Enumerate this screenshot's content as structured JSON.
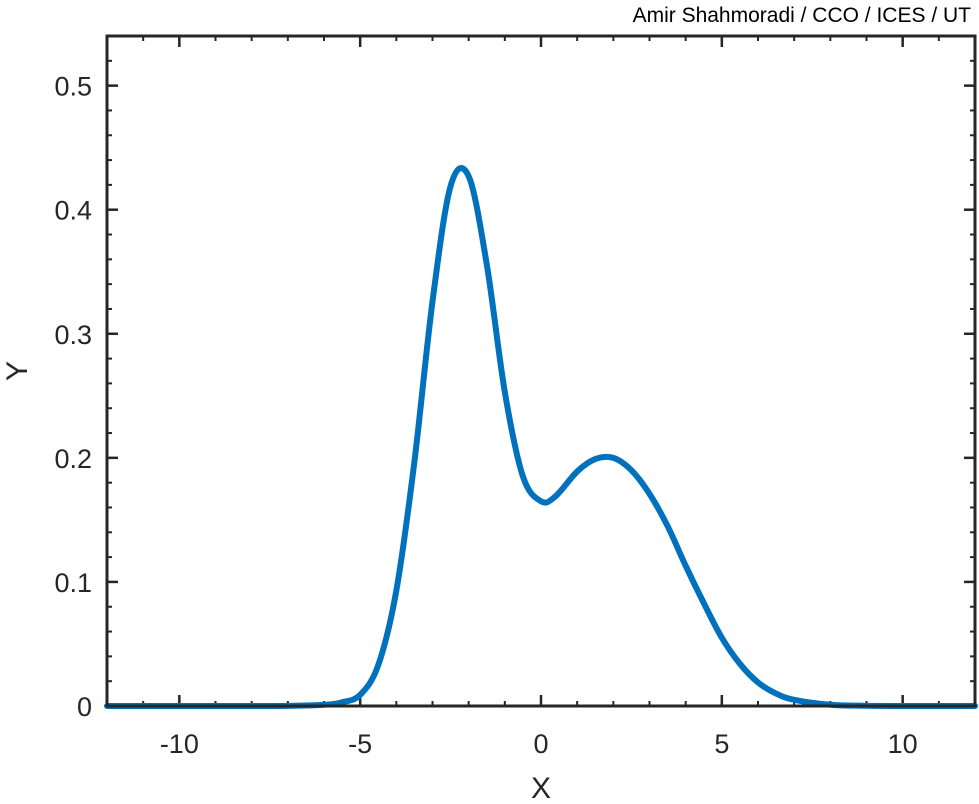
{
  "credit": "Amir Shahmoradi / CCO / ICES / UT",
  "chart_data": {
    "type": "line",
    "title": "",
    "xlabel": "X",
    "ylabel": "Y",
    "xlim": [
      -12,
      12
    ],
    "ylim": [
      0,
      0.54
    ],
    "xticks": [
      -10,
      -5,
      0,
      5,
      10
    ],
    "xtick_labels": [
      "-10",
      "-5",
      "0",
      "5",
      "10"
    ],
    "yticks": [
      0,
      0.1,
      0.2,
      0.3,
      0.4,
      0.5
    ],
    "ytick_labels": [
      "0",
      "0.1",
      "0.2",
      "0.3",
      "0.4",
      "0.5"
    ],
    "grid": false,
    "box": true,
    "minor_ticks": true,
    "line_color": "#0072BD",
    "series": [
      {
        "x": [
          -12,
          -10,
          -8,
          -7,
          -6,
          -5.5,
          -5,
          -4.5,
          -4,
          -3.5,
          -3,
          -2.5,
          -2,
          -1.5,
          -1,
          -0.5,
          0,
          0.4,
          1,
          1.5,
          2,
          2.5,
          3,
          3.5,
          4,
          4.5,
          5,
          5.5,
          6,
          6.5,
          7,
          8,
          9,
          10,
          12
        ],
        "y": [
          0,
          0,
          0,
          0.0001,
          0.001,
          0.003,
          0.009,
          0.033,
          0.093,
          0.197,
          0.326,
          0.419,
          0.427,
          0.356,
          0.253,
          0.185,
          0.165,
          0.169,
          0.189,
          0.199,
          0.2,
          0.19,
          0.171,
          0.145,
          0.113,
          0.083,
          0.055,
          0.034,
          0.019,
          0.01,
          0.005,
          0.001,
          0.0002,
          0,
          0
        ]
      }
    ]
  }
}
